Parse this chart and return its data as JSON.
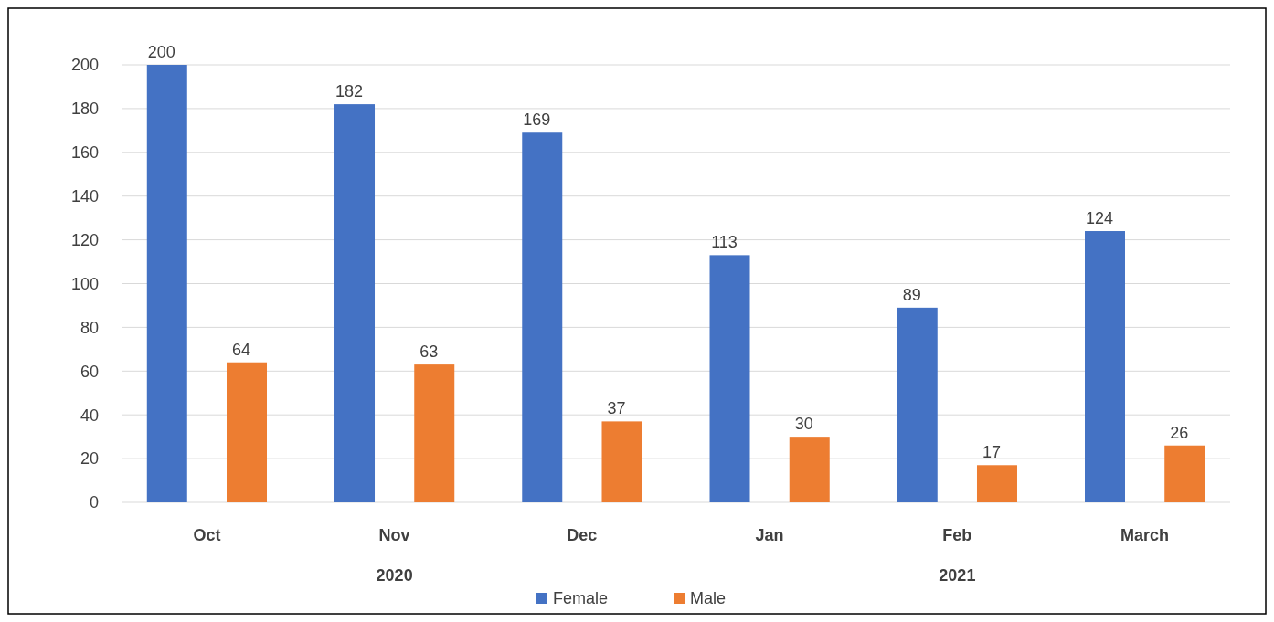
{
  "chart_data": {
    "type": "bar",
    "categories": [
      "Oct",
      "Nov",
      "Dec",
      "Jan",
      "Feb",
      "March"
    ],
    "series": [
      {
        "name": "Female",
        "color": "#4472c4",
        "values": [
          200,
          182,
          169,
          113,
          89,
          124
        ]
      },
      {
        "name": "Male",
        "color": "#ed7d31",
        "values": [
          64,
          63,
          37,
          30,
          17,
          26
        ]
      }
    ],
    "ylim": [
      0,
      200
    ],
    "yticks": [
      0,
      20,
      40,
      60,
      80,
      100,
      120,
      140,
      160,
      180,
      200
    ],
    "grid": "y",
    "legend": "bottom",
    "data_labels": true,
    "annotations": [
      "2020",
      "2021"
    ]
  }
}
